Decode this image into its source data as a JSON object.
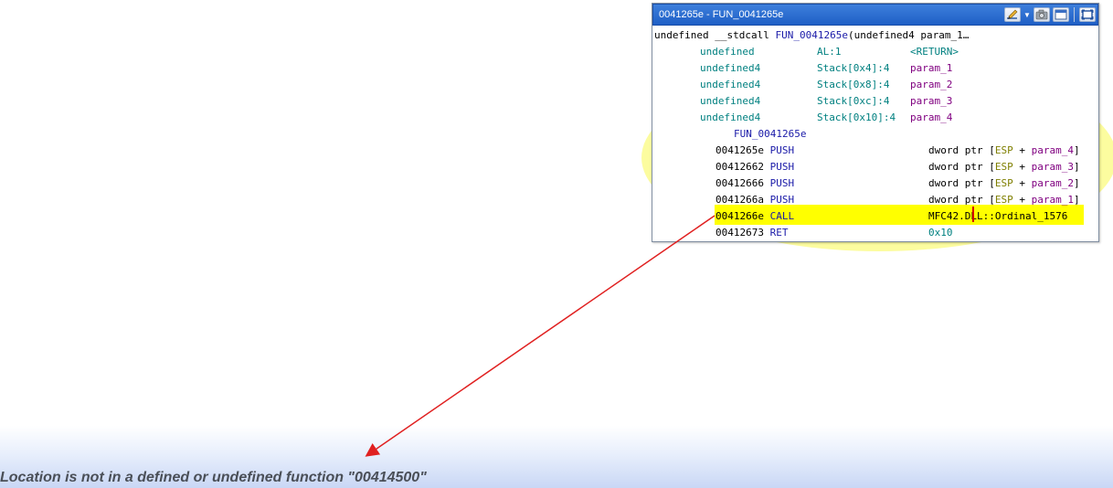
{
  "popup": {
    "title": "0041265e - FUN_0041265e",
    "signature": {
      "ret_type": "undefined",
      "conv": "__stdcall",
      "name": "FUN_0041265e",
      "params": "(undefined4 param_1…"
    },
    "vars": [
      {
        "type": "undefined",
        "storage": "AL:1",
        "name": "<RETURN>"
      },
      {
        "type": "undefined4",
        "storage": "Stack[0x4]:4",
        "name": "param_1"
      },
      {
        "type": "undefined4",
        "storage": "Stack[0x8]:4",
        "name": "param_2"
      },
      {
        "type": "undefined4",
        "storage": "Stack[0xc]:4",
        "name": "param_3"
      },
      {
        "type": "undefined4",
        "storage": "Stack[0x10]:4",
        "name": "param_4"
      }
    ],
    "label": "FUN_0041265e",
    "instructions": [
      {
        "addr": "0041265e",
        "mnemonic": "PUSH",
        "op_prefix": "dword ptr ",
        "reg": "ESP",
        "plus": " + ",
        "param": "param_4"
      },
      {
        "addr": "00412662",
        "mnemonic": "PUSH",
        "op_prefix": "dword ptr ",
        "reg": "ESP",
        "plus": " + ",
        "param": "param_3"
      },
      {
        "addr": "00412666",
        "mnemonic": "PUSH",
        "op_prefix": "dword ptr ",
        "reg": "ESP",
        "plus": " + ",
        "param": "param_2"
      },
      {
        "addr": "0041266a",
        "mnemonic": "PUSH",
        "op_prefix": "dword ptr ",
        "reg": "ESP",
        "plus": " + ",
        "param": "param_1"
      },
      {
        "addr": "0041266e",
        "mnemonic": "CALL",
        "operand": "MFC42.DLL::Ordinal_1576"
      },
      {
        "addr": "00412673",
        "mnemonic": "RET",
        "operand": "0x10"
      }
    ],
    "toolbar_icons": [
      "edit-pencil-icon",
      "dropdown-arrow-icon",
      "snapshot-camera-icon",
      "window-icon",
      "maximize-icon"
    ]
  },
  "status": {
    "message": "Location is not in a defined or undefined function \"00414500\""
  },
  "colors": {
    "highlight": "#ffff00",
    "glow": "#fbfb8e",
    "arrow": "#e02020",
    "title_bg": "#2a6ad0"
  }
}
